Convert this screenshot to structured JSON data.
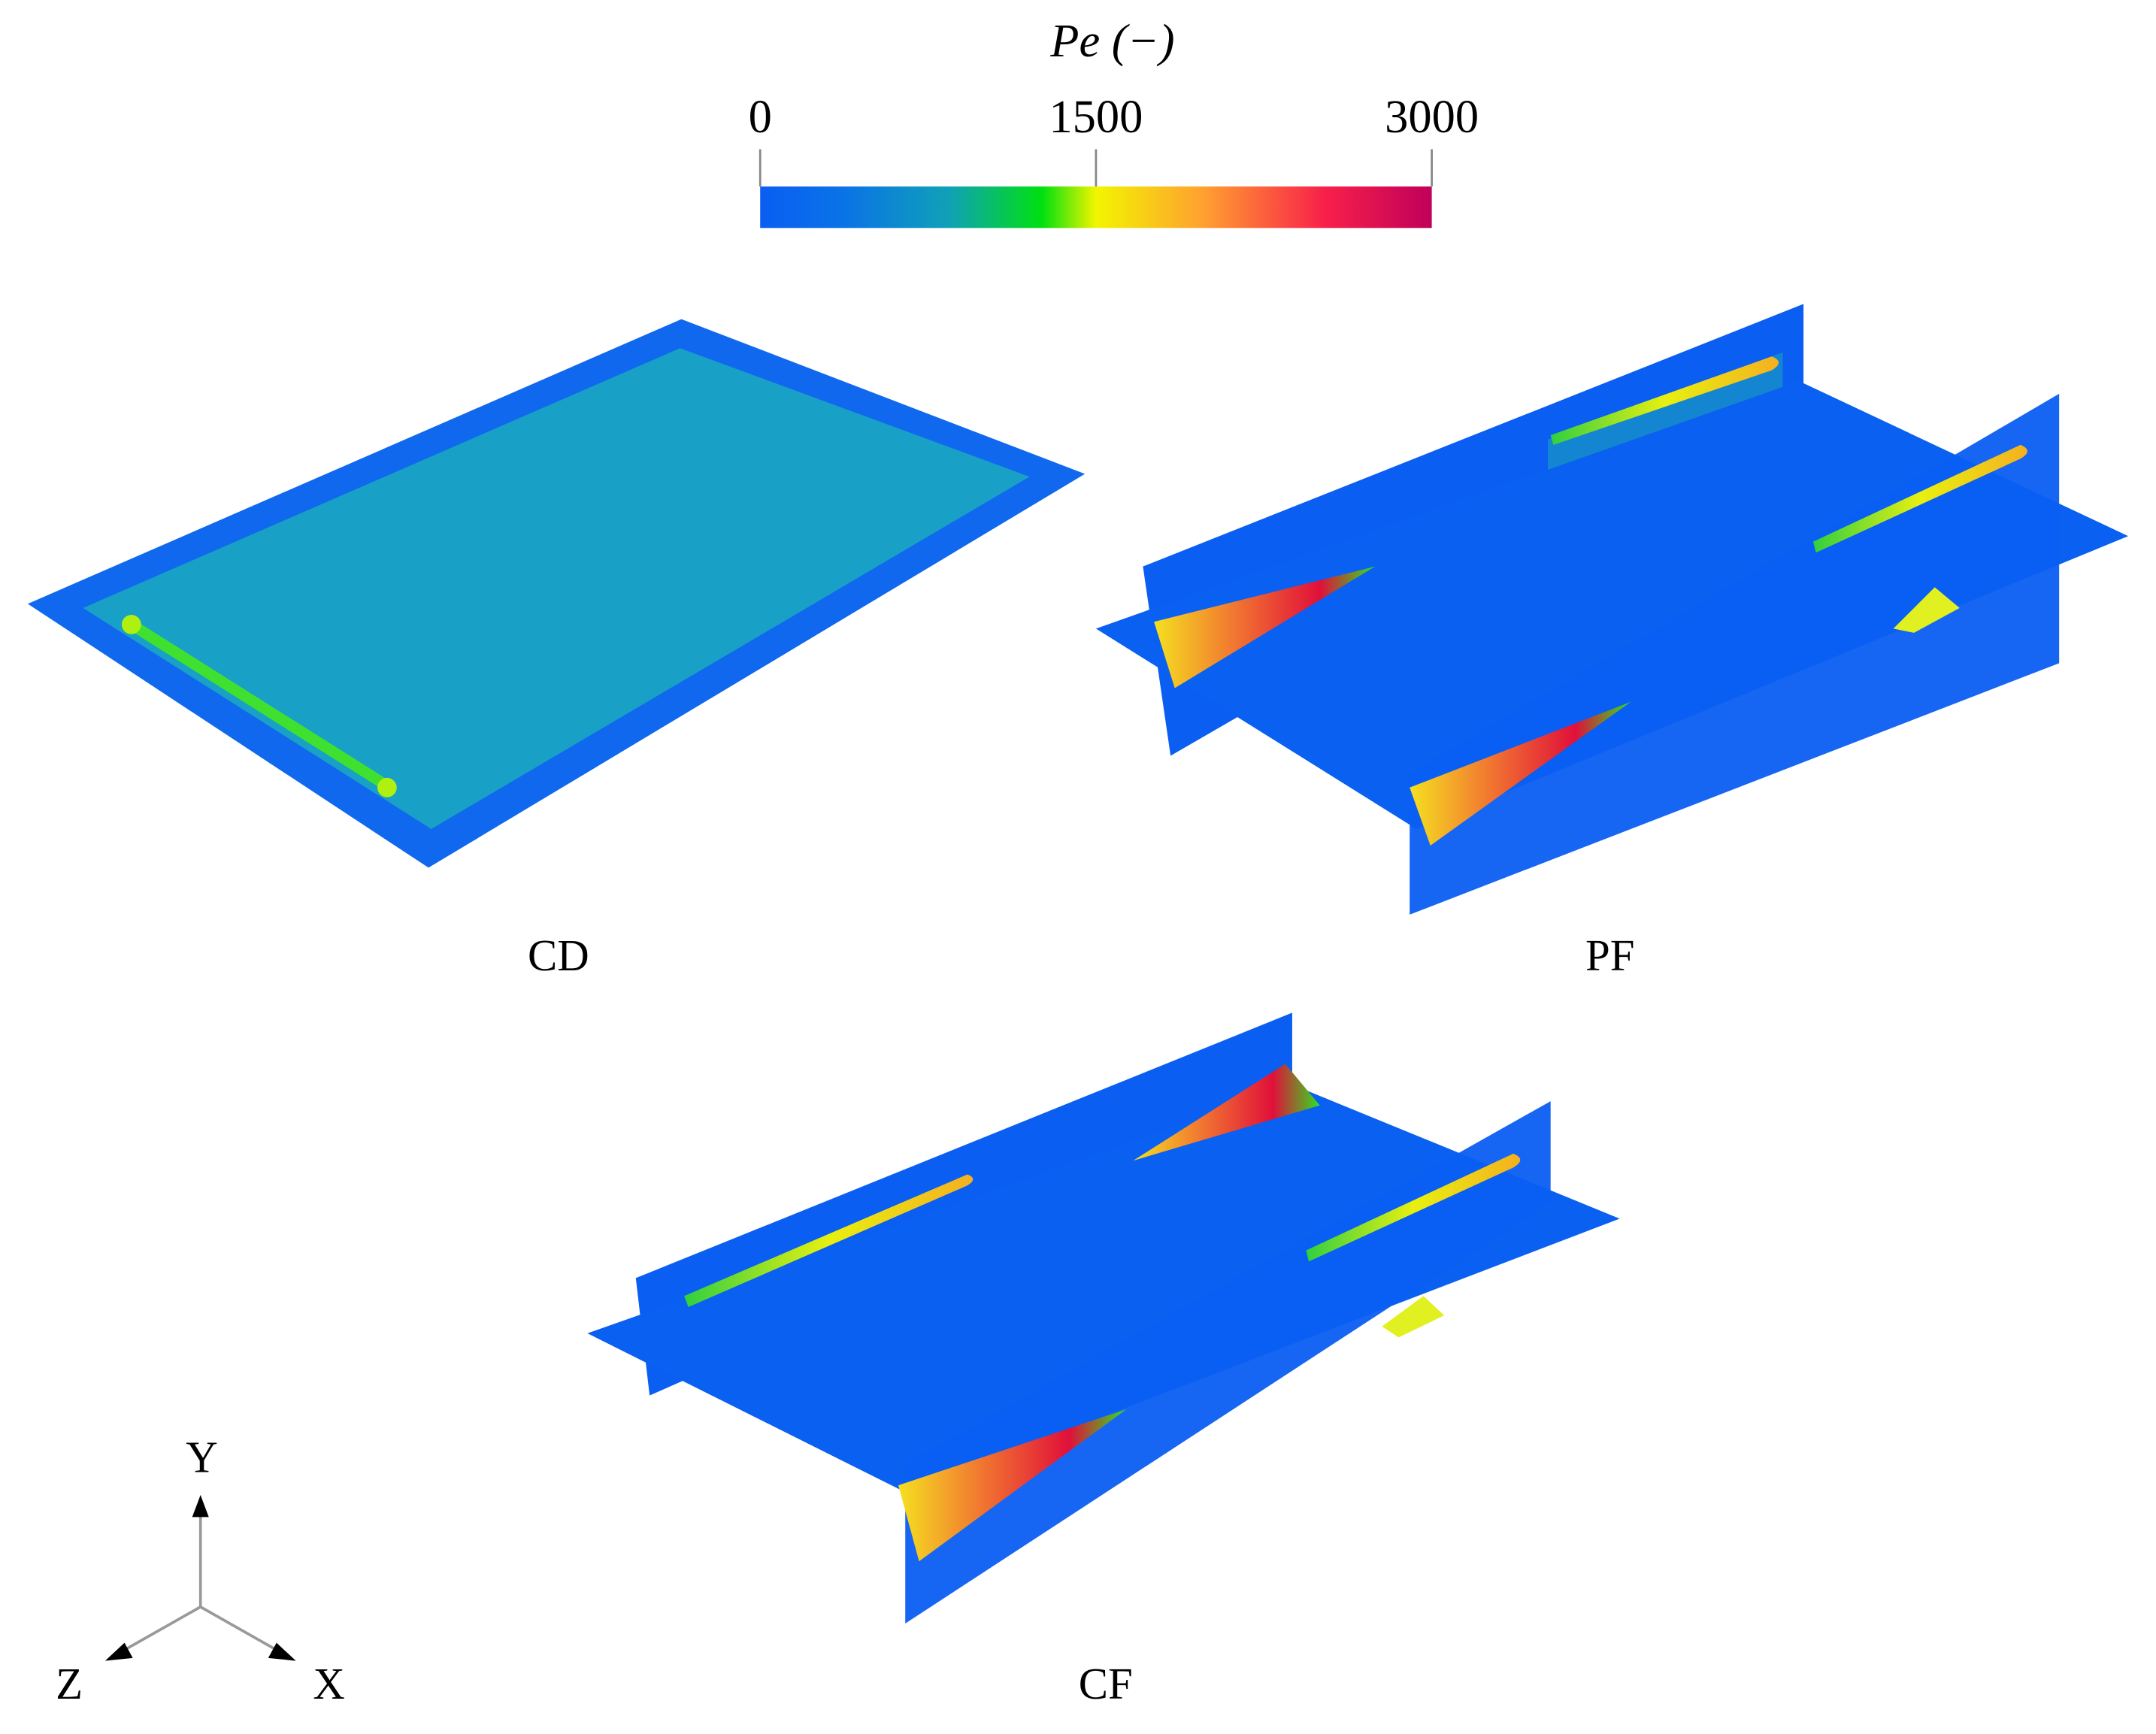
{
  "colorbar": {
    "title": "Pe (−)",
    "lim": [
      0,
      3000
    ],
    "ticks": [
      0,
      1500,
      3000
    ]
  },
  "panels": [
    {
      "label": "CD"
    },
    {
      "label": "PF"
    },
    {
      "label": "CF"
    }
  ],
  "axes": {
    "y": "Y",
    "z": "Z",
    "x": "X"
  }
}
